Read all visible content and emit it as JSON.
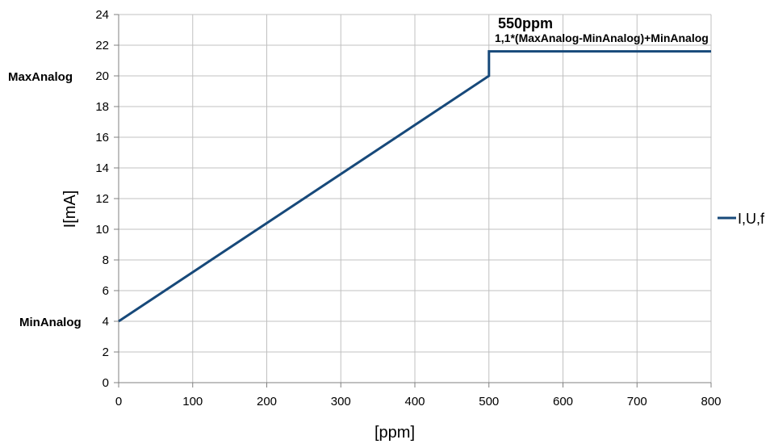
{
  "chart_data": {
    "type": "line",
    "xlabel": "[ppm]",
    "ylabel": "I[mA]",
    "xlim": [
      0,
      800
    ],
    "ylim": [
      0,
      24
    ],
    "x_ticks": [
      0,
      100,
      200,
      300,
      400,
      500,
      600,
      700,
      800
    ],
    "y_ticks": [
      0,
      2,
      4,
      6,
      8,
      10,
      12,
      14,
      16,
      18,
      20,
      22,
      24
    ],
    "grid": true,
    "legend": {
      "position": "right",
      "entries": [
        "I,U,f"
      ]
    },
    "colors": {
      "series": "#17497a",
      "grid": "#c0c0c0",
      "axis": "#808080"
    },
    "series": [
      {
        "name": "I,U,f",
        "x": [
          0,
          500,
          500,
          800
        ],
        "y": [
          4,
          20,
          21.6,
          21.6
        ]
      }
    ],
    "side_labels": [
      {
        "text": "MaxAnalog",
        "y": 20
      },
      {
        "text": "MinAnalog",
        "y": 4
      }
    ],
    "annotations": [
      {
        "text": "550ppm"
      },
      {
        "text": "1,1*(MaxAnalog-MinAnalog)+MinAnalog"
      }
    ]
  }
}
